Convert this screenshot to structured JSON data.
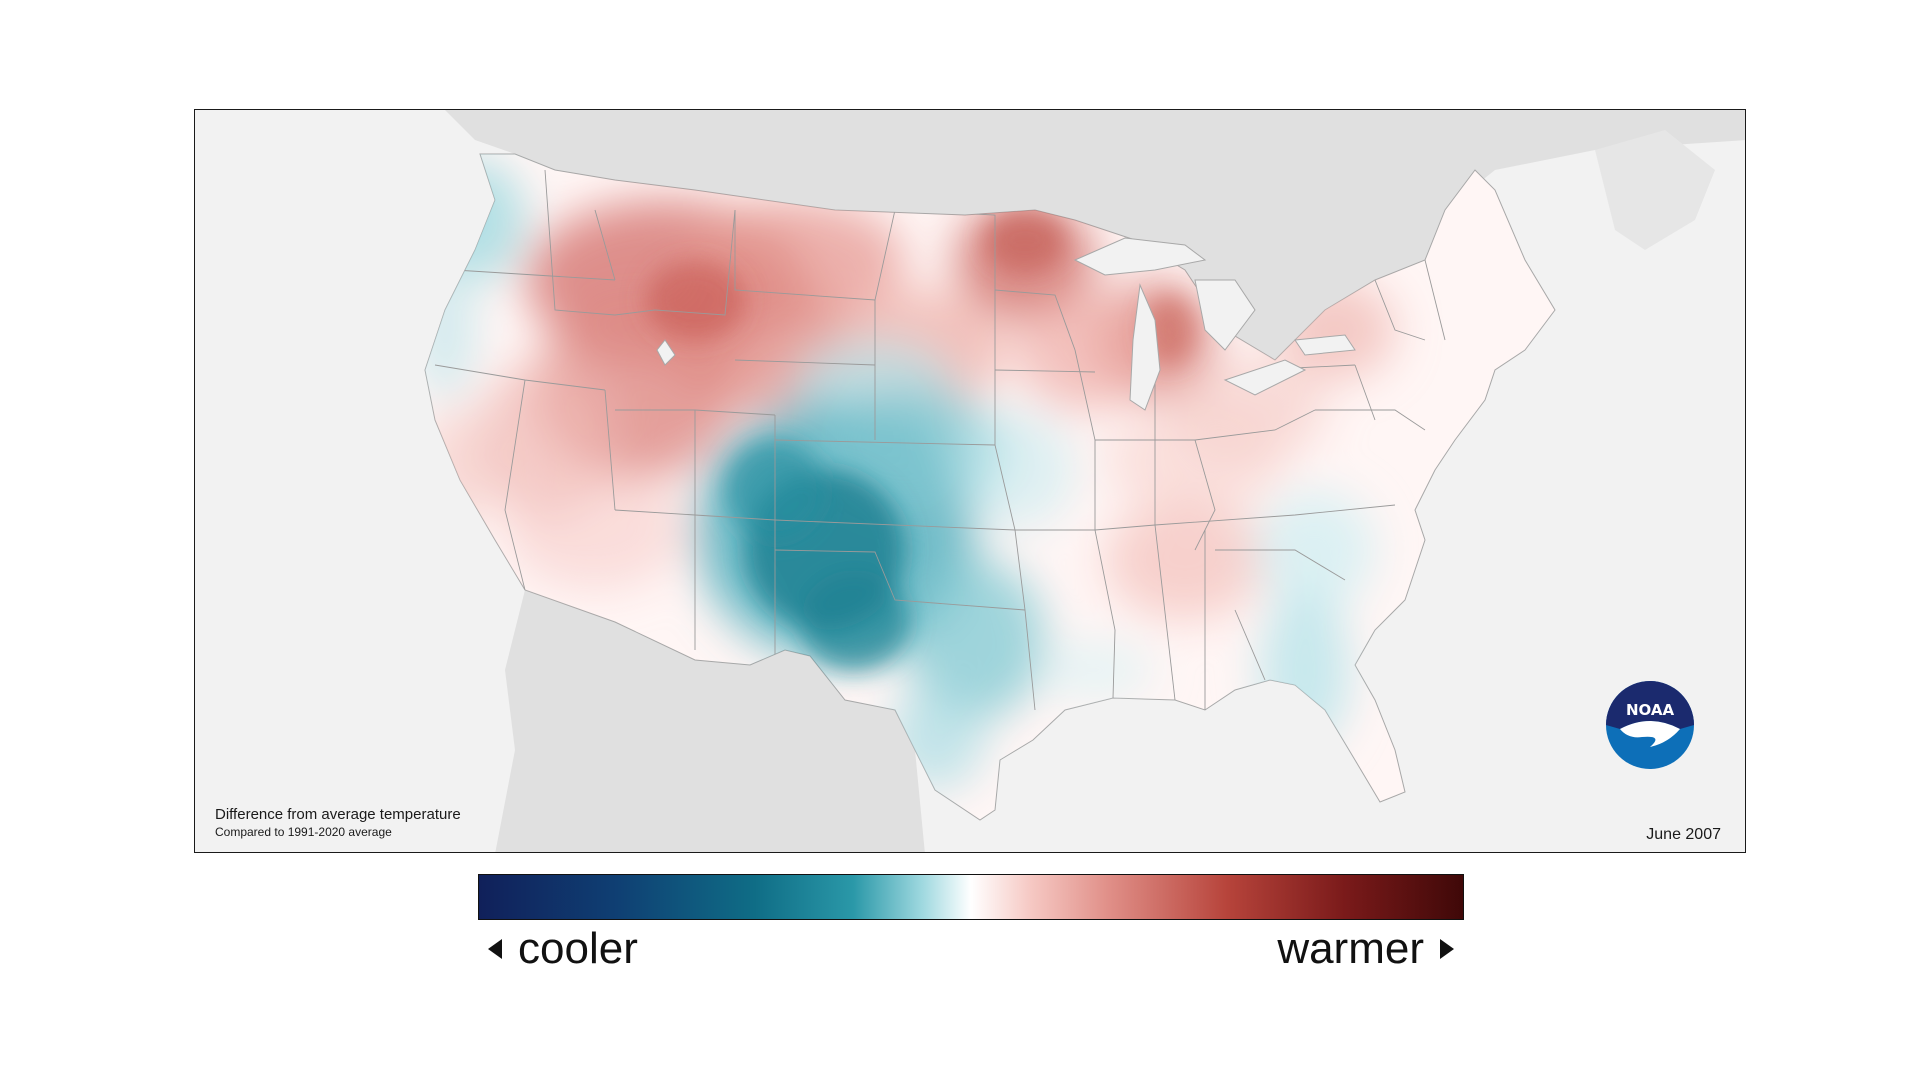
{
  "map": {
    "caption_line1": "Difference from average temperature",
    "caption_line2": "Compared to 1991-2020 average",
    "date": "June 2007",
    "logo_text": "NOAA"
  },
  "legend": {
    "left_label": "cooler",
    "right_label": "warmer"
  },
  "colors": {
    "cooler_max": "#10205a",
    "cool_mid": "#0f6d86",
    "neutral": "#ffffff",
    "warm_mid": "#e08f88",
    "warmer_max": "#3f0808",
    "land_outside": "#e0e0e0",
    "ocean": "#f2f2f2"
  }
}
